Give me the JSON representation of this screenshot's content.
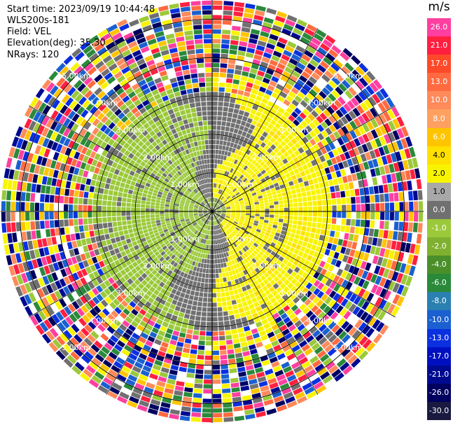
{
  "info": {
    "start_time": "Start time: 2023/09/19 10:44:48",
    "instrument": "WLS200s-181",
    "field": "Field: VEL",
    "elevation": "Elevation(deg): 35.30",
    "nrays": "NRays: 120"
  },
  "colorbar": {
    "title": "m/s",
    "levels": [
      {
        "label": "26.0",
        "color": "#ff3fa0"
      },
      {
        "label": "21.0",
        "color": "#ff1f3f"
      },
      {
        "label": "17.0",
        "color": "#ff4a2a"
      },
      {
        "label": "13.0",
        "color": "#ff6a40"
      },
      {
        "label": "10.0",
        "color": "#ff8a5a"
      },
      {
        "label": "8.0",
        "color": "#ffa060"
      },
      {
        "label": "6.0",
        "color": "#ffc400"
      },
      {
        "label": "4.0",
        "color": "#ffe000"
      },
      {
        "label": "2.0",
        "color": "#f8f400"
      },
      {
        "label": "1.0",
        "color": "#a8a8a8"
      },
      {
        "label": "0.0",
        "color": "#707070"
      },
      {
        "label": "-1.0",
        "color": "#9bc93a"
      },
      {
        "label": "-2.0",
        "color": "#7fb030"
      },
      {
        "label": "-4.0",
        "color": "#4a8f2a"
      },
      {
        "label": "-6.0",
        "color": "#2a8a3a"
      },
      {
        "label": "-8.0",
        "color": "#2a80b0"
      },
      {
        "label": "-10.0",
        "color": "#1a60d0"
      },
      {
        "label": "-13.0",
        "color": "#0a30e0"
      },
      {
        "label": "-17.0",
        "color": "#0010c0"
      },
      {
        "label": "-21.0",
        "color": "#000a90"
      },
      {
        "label": "-26.0",
        "color": "#000060"
      },
      {
        "label": "-30.0",
        "color": "#1a1a40"
      }
    ]
  },
  "chart_data": {
    "type": "heatmap",
    "projection": "polar-ppi",
    "field": "VEL",
    "units": "m/s",
    "nrays": 120,
    "ring_labels": [
      "1.00km",
      "2.00km",
      "3.00km",
      "4.00km",
      "5.00km"
    ],
    "rings_km": [
      1,
      2,
      3,
      4,
      5
    ],
    "spokes_deg_step": 30,
    "max_range_km": 5.5,
    "pattern": {
      "inner_low_km": [
        0,
        0.4
      ],
      "coherent_ring_km": [
        0.4,
        3.1
      ],
      "noise_beyond_km": 3.1,
      "positive_side": "east",
      "negative_side": "west"
    }
  }
}
